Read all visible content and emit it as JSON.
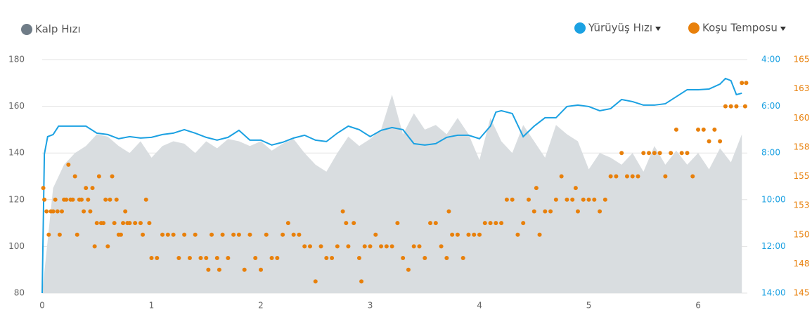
{
  "chart_data": {
    "type": "combo",
    "xlim": [
      0,
      6.45
    ],
    "xticks": [
      0,
      1,
      2,
      3,
      4,
      5,
      6
    ],
    "ylim": [
      80,
      180
    ],
    "yticks": [
      80,
      100,
      120,
      140,
      160,
      180
    ],
    "y2lim": [
      14,
      4
    ],
    "y2ticks": [
      {
        "value": 4,
        "label": "4:00"
      },
      {
        "value": 6,
        "label": "6:00"
      },
      {
        "value": 8,
        "label": "8:00"
      },
      {
        "value": 10,
        "label": "10:00"
      },
      {
        "value": 12,
        "label": "12:00"
      },
      {
        "value": 14,
        "label": "14:00"
      }
    ],
    "y3lim": [
      145,
      165
    ],
    "y3ticks": [
      145,
      {
        "value": 147.5,
        "label": "148"
      },
      150,
      {
        "value": 152.5,
        "label": "153"
      },
      155,
      {
        "value": 157.5,
        "label": "158"
      },
      160,
      {
        "value": 162.5,
        "label": "163"
      },
      165
    ],
    "grid": true,
    "series": [
      {
        "name": "Kalp Hızı",
        "type": "area",
        "axis": "y",
        "color": "#6f7c87",
        "fill": "#d9dde0",
        "x": [
          0,
          0.1,
          0.2,
          0.3,
          0.4,
          0.5,
          0.6,
          0.7,
          0.8,
          0.9,
          1.0,
          1.1,
          1.2,
          1.3,
          1.4,
          1.5,
          1.6,
          1.7,
          1.8,
          1.9,
          2.0,
          2.1,
          2.2,
          2.3,
          2.4,
          2.5,
          2.6,
          2.7,
          2.8,
          2.9,
          3.0,
          3.1,
          3.2,
          3.3,
          3.4,
          3.5,
          3.6,
          3.7,
          3.8,
          3.9,
          4.0,
          4.1,
          4.2,
          4.3,
          4.4,
          4.5,
          4.6,
          4.7,
          4.8,
          4.9,
          5.0,
          5.1,
          5.2,
          5.3,
          5.4,
          5.5,
          5.6,
          5.7,
          5.8,
          5.9,
          6.0,
          6.1,
          6.2,
          6.3,
          6.4
        ],
        "values": [
          80,
          125,
          135,
          140,
          143,
          148,
          147,
          143,
          140,
          145,
          138,
          143,
          145,
          144,
          140,
          145,
          142,
          146,
          145,
          143,
          145,
          141,
          144,
          146,
          140,
          135,
          132,
          140,
          147,
          143,
          146,
          150,
          165,
          148,
          157,
          150,
          152,
          148,
          155,
          148,
          137,
          155,
          145,
          140,
          152,
          145,
          138,
          152,
          148,
          145,
          133,
          140,
          138,
          135,
          140,
          132,
          143,
          135,
          141,
          135,
          140,
          133,
          142,
          136,
          148
        ]
      },
      {
        "name": "Yürüyüş Hızı",
        "type": "line",
        "axis": "y2",
        "color": "#1ba1e2",
        "x": [
          0,
          0.02,
          0.05,
          0.1,
          0.15,
          0.2,
          0.3,
          0.4,
          0.5,
          0.6,
          0.7,
          0.8,
          0.9,
          1.0,
          1.1,
          1.2,
          1.3,
          1.4,
          1.5,
          1.6,
          1.7,
          1.8,
          1.9,
          2.0,
          2.1,
          2.2,
          2.3,
          2.4,
          2.5,
          2.6,
          2.7,
          2.8,
          2.9,
          3.0,
          3.1,
          3.2,
          3.3,
          3.4,
          3.5,
          3.6,
          3.7,
          3.8,
          3.9,
          4.0,
          4.1,
          4.15,
          4.2,
          4.3,
          4.4,
          4.5,
          4.6,
          4.7,
          4.8,
          4.9,
          5.0,
          5.1,
          5.2,
          5.3,
          5.4,
          5.5,
          5.6,
          5.7,
          5.8,
          5.9,
          6.0,
          6.1,
          6.2,
          6.25,
          6.3,
          6.35,
          6.4
        ],
        "values": [
          14,
          8.05,
          7.3,
          7.21,
          6.85,
          6.85,
          6.85,
          6.85,
          7.15,
          7.21,
          7.39,
          7.3,
          7.36,
          7.33,
          7.21,
          7.15,
          7.0,
          7.15,
          7.33,
          7.45,
          7.33,
          7.03,
          7.45,
          7.45,
          7.66,
          7.54,
          7.36,
          7.24,
          7.45,
          7.51,
          7.15,
          6.85,
          7.0,
          7.3,
          7.03,
          6.91,
          7.0,
          7.6,
          7.66,
          7.6,
          7.33,
          7.24,
          7.24,
          7.39,
          6.85,
          6.25,
          6.19,
          6.31,
          7.3,
          6.85,
          6.49,
          6.49,
          6.01,
          5.95,
          6.01,
          6.19,
          6.1,
          5.71,
          5.8,
          5.95,
          5.95,
          5.89,
          5.59,
          5.29,
          5.29,
          5.26,
          5.05,
          4.81,
          4.9,
          5.5,
          5.44
        ]
      },
      {
        "name": "Koşu Temposu",
        "type": "scatter",
        "axis": "y3",
        "color": "#e8800b",
        "x": [
          0.01,
          0.02,
          0.04,
          0.06,
          0.08,
          0.1,
          0.12,
          0.14,
          0.16,
          0.18,
          0.2,
          0.22,
          0.24,
          0.26,
          0.28,
          0.3,
          0.32,
          0.34,
          0.36,
          0.38,
          0.4,
          0.42,
          0.44,
          0.46,
          0.48,
          0.5,
          0.52,
          0.54,
          0.56,
          0.58,
          0.6,
          0.62,
          0.64,
          0.66,
          0.68,
          0.7,
          0.72,
          0.74,
          0.76,
          0.78,
          0.8,
          0.85,
          0.9,
          0.92,
          0.95,
          0.98,
          1.0,
          1.05,
          1.1,
          1.15,
          1.2,
          1.25,
          1.3,
          1.35,
          1.4,
          1.45,
          1.5,
          1.52,
          1.55,
          1.6,
          1.62,
          1.65,
          1.7,
          1.75,
          1.8,
          1.85,
          1.9,
          1.95,
          2.0,
          2.05,
          2.1,
          2.15,
          2.2,
          2.25,
          2.3,
          2.35,
          2.4,
          2.45,
          2.5,
          2.55,
          2.6,
          2.65,
          2.7,
          2.75,
          2.78,
          2.8,
          2.85,
          2.9,
          2.92,
          2.95,
          3.0,
          3.05,
          3.1,
          3.15,
          3.2,
          3.25,
          3.3,
          3.35,
          3.4,
          3.45,
          3.5,
          3.55,
          3.6,
          3.65,
          3.7,
          3.72,
          3.75,
          3.8,
          3.85,
          3.9,
          3.95,
          4.0,
          4.05,
          4.1,
          4.15,
          4.2,
          4.25,
          4.3,
          4.35,
          4.4,
          4.45,
          4.5,
          4.52,
          4.55,
          4.6,
          4.65,
          4.7,
          4.75,
          4.8,
          4.85,
          4.88,
          4.9,
          4.95,
          5.0,
          5.05,
          5.1,
          5.15,
          5.2,
          5.25,
          5.3,
          5.35,
          5.4,
          5.45,
          5.5,
          5.55,
          5.6,
          5.65,
          5.7,
          5.75,
          5.8,
          5.85,
          5.9,
          5.95,
          6.0,
          6.05,
          6.1,
          6.15,
          6.2,
          6.25,
          6.3,
          6.35,
          6.4,
          6.43,
          6.44
        ],
        "values": [
          154,
          153,
          152,
          150,
          152,
          152,
          153,
          152,
          150,
          152,
          153,
          153,
          156,
          153,
          153,
          155,
          150,
          153,
          153,
          152,
          154,
          153,
          152,
          154,
          149,
          151,
          155,
          151,
          151,
          153,
          149,
          153,
          155,
          151,
          153,
          150,
          150,
          151,
          152,
          151,
          151,
          151,
          151,
          150,
          153,
          151,
          148,
          148,
          150,
          150,
          150,
          148,
          150,
          148,
          150,
          148,
          148,
          147,
          150,
          148,
          147,
          150,
          148,
          150,
          150,
          147,
          150,
          148,
          147,
          150,
          148,
          148,
          150,
          151,
          150,
          150,
          149,
          149,
          146,
          149,
          148,
          148,
          149,
          152,
          151,
          149,
          151,
          148,
          146,
          149,
          149,
          150,
          149,
          149,
          149,
          151,
          148,
          147,
          149,
          149,
          148,
          151,
          151,
          149,
          148,
          152,
          150,
          150,
          148,
          150,
          150,
          150,
          151,
          151,
          151,
          151,
          153,
          153,
          150,
          151,
          153,
          152,
          154,
          150,
          152,
          152,
          153,
          155,
          153,
          153,
          154,
          152,
          153,
          153,
          153,
          152,
          153,
          155,
          155,
          157,
          155,
          155,
          155,
          157,
          157,
          157,
          157,
          155,
          157,
          159,
          157,
          157,
          155,
          159,
          159,
          158,
          159,
          158,
          161,
          161,
          161,
          163,
          161,
          163
        ]
      }
    ]
  }
}
